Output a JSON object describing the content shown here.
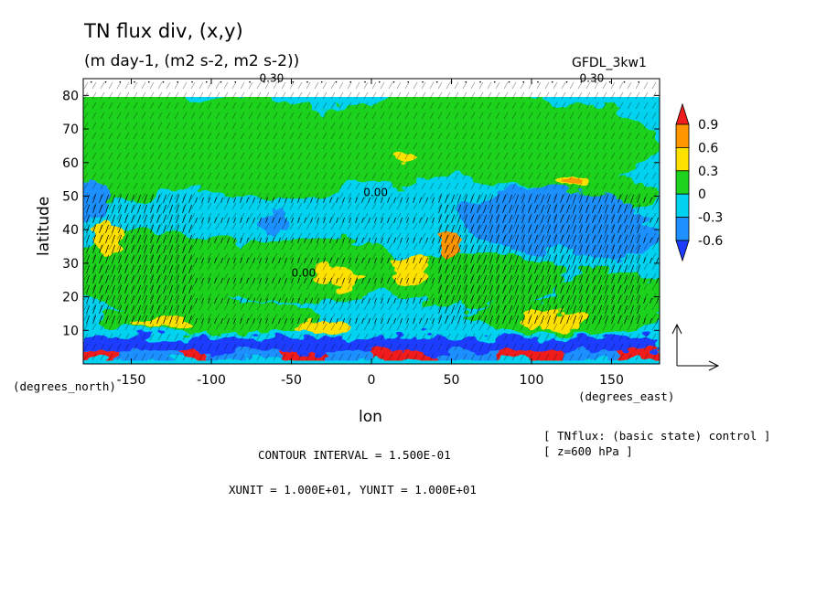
{
  "header": {
    "title": "TN flux div, (x,y)",
    "subtitle": "(m day-1, (m2 s-2, m2 s-2))",
    "model": "GFDL_3kw1"
  },
  "footer": {
    "dataset_line1": "[ TNflux: (basic state) control ]",
    "dataset_line2": "[ z=600 hPa ]",
    "contour_interval": "CONTOUR INTERVAL = 1.500E-01",
    "units_line": "XUNIT = 1.000E+01, YUNIT = 1.000E+01"
  },
  "colors": {
    "dark_blue": "#1e3cff",
    "mid_blue": "#1e90ff",
    "light_blue": "#00d2f0",
    "green": "#1ed21e",
    "yellow": "#ffe100",
    "orange": "#ff9600",
    "red": "#f01e1e"
  },
  "chart_data": {
    "type": "heatmap",
    "title": "TN flux div, (x,y)",
    "subtitle": "(m day-1, (m2 s-2, m2 s-2))",
    "xlabel": "lon",
    "ylabel": "latitude",
    "x_unit_label": "(degrees_east)",
    "y_unit_label": "(degrees_north)",
    "xlim": [
      -180,
      180
    ],
    "ylim": [
      0,
      85
    ],
    "x_ticks": [
      -150,
      -100,
      -50,
      0,
      50,
      100,
      150
    ],
    "y_ticks": [
      10,
      20,
      30,
      40,
      50,
      60,
      70,
      80
    ],
    "colorbar": {
      "levels": [
        "0.9",
        "0.6",
        "0.3",
        "0",
        "-0.3",
        "-0.6"
      ],
      "bins": [
        {
          "color": "#f01e1e"
        },
        {
          "color": "#ff9600"
        },
        {
          "color": "#ffe100"
        },
        {
          "color": "#1ed21e"
        },
        {
          "color": "#00d2f0"
        },
        {
          "color": "#1e90ff"
        },
        {
          "color": "#1e3cff"
        }
      ]
    },
    "contour_labels": [
      "0.30",
      "0.30",
      "0.00",
      "0.00"
    ],
    "vectors": true
  }
}
